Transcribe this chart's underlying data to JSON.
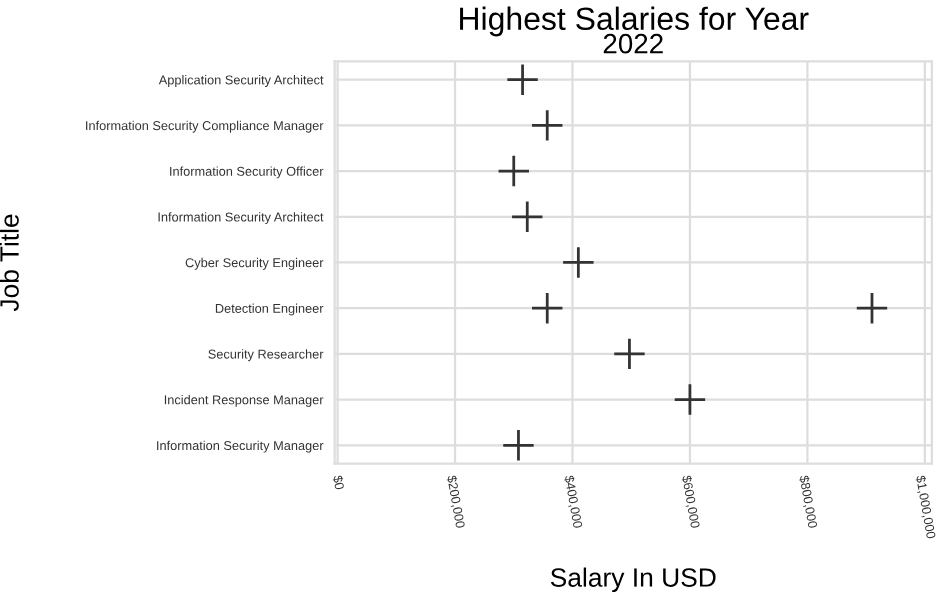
{
  "chart_data": {
    "type": "scatter",
    "orientation": "horizontal",
    "title": "Highest Salaries for Year",
    "subtitle": "2022",
    "xlabel": "Salary In USD",
    "ylabel": "Job Title",
    "categories": [
      "Application Security Architect",
      "Information Security Compliance Manager",
      "Information Security Officer",
      "Information Security Architect",
      "Cyber Security Engineer",
      "Detection Engineer",
      "Security Researcher",
      "Incident Response Manager",
      "Information Security Manager"
    ],
    "series": [
      {
        "color": "#333333",
        "values": [
          315000,
          357000,
          300000,
          323000,
          410000,
          357000,
          497000,
          600000,
          308000
        ]
      },
      {
        "color": "#333333",
        "values": [
          null,
          null,
          null,
          null,
          null,
          910000,
          null,
          null,
          null
        ]
      }
    ],
    "xlim": [
      -5000,
      1012000
    ],
    "xticks": [
      {
        "value": 0,
        "label": "$0"
      },
      {
        "value": 200000,
        "label": "$200,000"
      },
      {
        "value": 400000,
        "label": "$400,000"
      },
      {
        "value": 600000,
        "label": "$600,000"
      },
      {
        "value": 800000,
        "label": "$800,000"
      },
      {
        "value": 1000000,
        "label": "$1,000,000"
      }
    ],
    "grid": true,
    "marker": "cross"
  }
}
